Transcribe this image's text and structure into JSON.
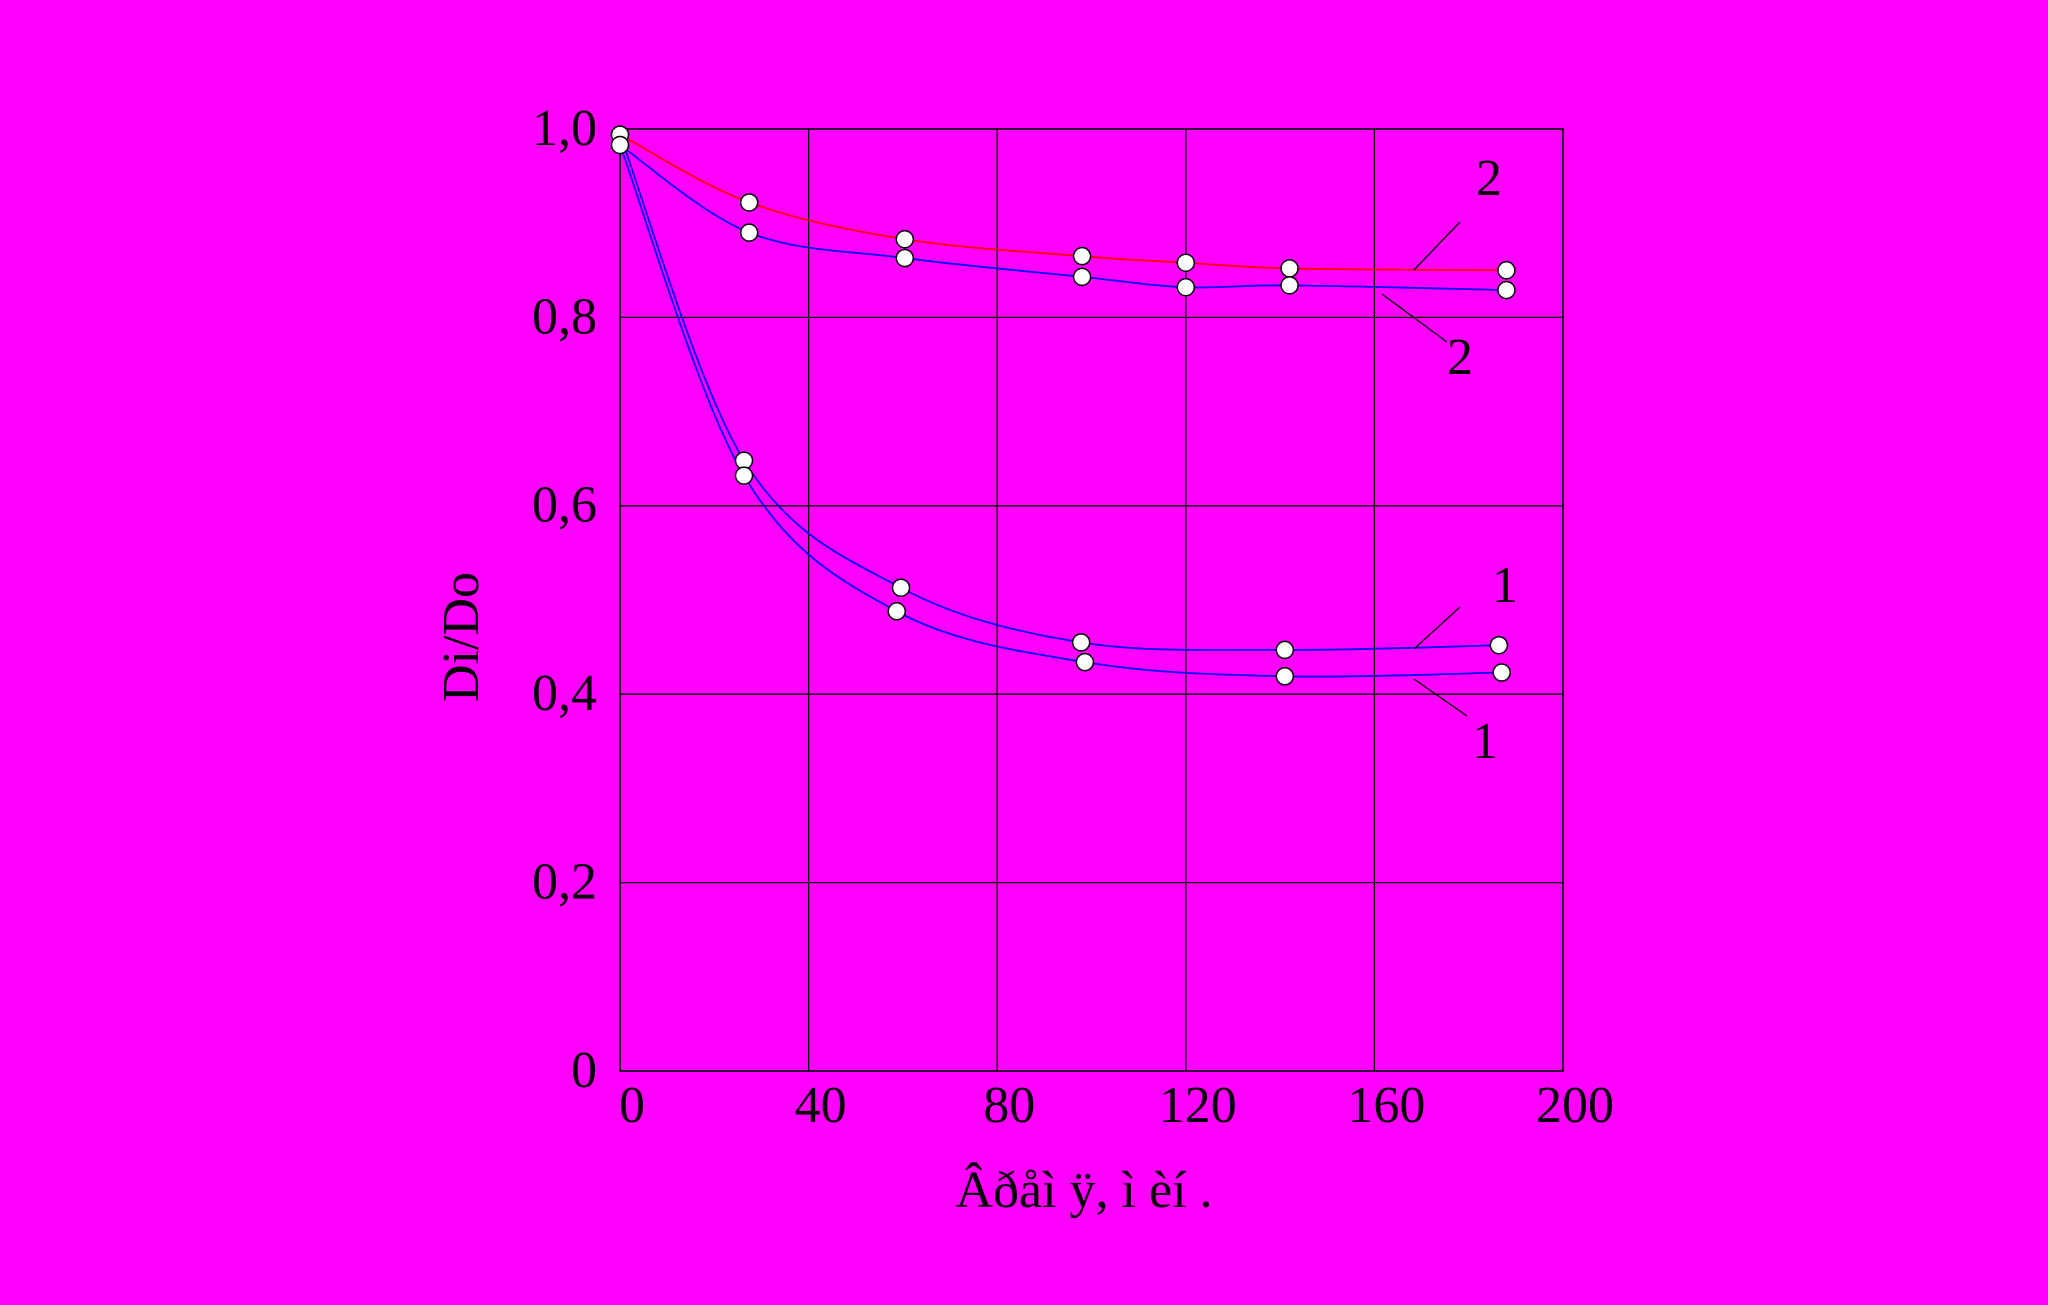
{
  "chart_data": {
    "type": "line",
    "xlabel": "Âðåì ÿ,  ì èí .",
    "ylabel": "Di/Do",
    "xlim": [
      0,
      200
    ],
    "xticks": [
      0,
      40,
      80,
      120,
      160,
      200
    ],
    "ylim": [
      0,
      1.0
    ],
    "yticks": [
      0,
      {
        "value": 0.2,
        "label": "0,2"
      },
      {
        "value": 0.4,
        "label": "0,4"
      },
      {
        "value": 0.6,
        "label": "0,6"
      },
      {
        "value": 0.8,
        "label": "0,8"
      },
      {
        "value": 1.0,
        "label": "1,0"
      }
    ],
    "grid": true,
    "marker_color": "#ffffff",
    "series": [
      {
        "name": "2",
        "color": "#ff0000",
        "x": [
          0,
          27.4,
          60.4,
          98,
          120,
          142,
          188
        ],
        "values": [
          0.994,
          0.922,
          0.883,
          0.865,
          0.858,
          0.852,
          0.85
        ]
      },
      {
        "name": "2",
        "color": "#0000ff",
        "x": [
          0,
          27.4,
          60.4,
          98,
          120,
          142,
          188
        ],
        "values": [
          0.983,
          0.89,
          0.863,
          0.843,
          0.832,
          0.834,
          0.829
        ]
      },
      {
        "name": "1",
        "color": "#0000ff",
        "x": [
          0,
          26.3,
          59.6,
          97.8,
          141,
          186.4
        ],
        "values": [
          0.994,
          0.648,
          0.513,
          0.455,
          0.447,
          0.452
        ]
      },
      {
        "name": "1",
        "color": "#0000ff",
        "x": [
          0,
          26.3,
          58.7,
          98.6,
          141,
          187
        ],
        "values": [
          0.983,
          0.632,
          0.488,
          0.434,
          0.419,
          0.423
        ]
      }
    ]
  }
}
